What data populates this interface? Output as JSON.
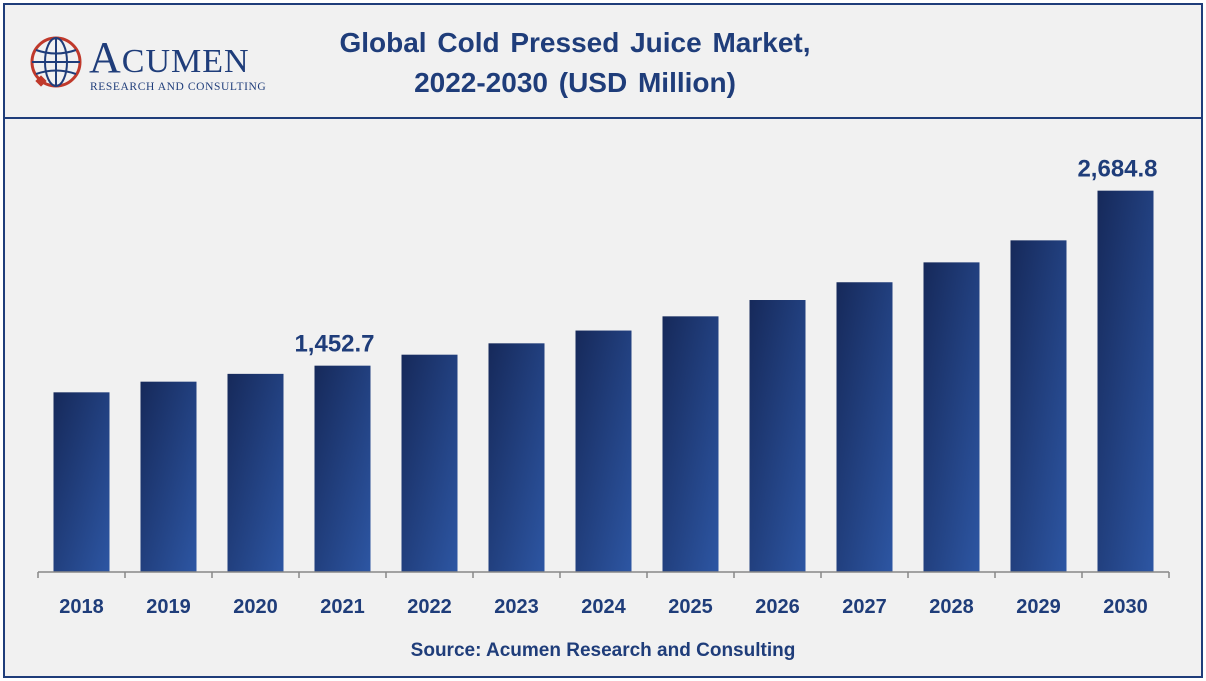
{
  "header": {
    "logo_text": "ACUMEN",
    "logo_sub": "RESEARCH AND CONSULTING",
    "title_line1": "Global Cold Pressed Juice Market,",
    "title_line2": "2022-2030 (USD Million)"
  },
  "source": "Source: Acumen Research and Consulting",
  "colors": {
    "bar_dark": "#16295a",
    "bar_light": "#2d56a3",
    "text": "#1f3d7a",
    "axis": "#888888"
  },
  "chart_data": {
    "type": "bar",
    "title": "Global Cold Pressed Juice Market, 2022-2030 (USD Million)",
    "xlabel": "",
    "ylabel": "",
    "categories": [
      "2018",
      "2019",
      "2020",
      "2021",
      "2022",
      "2023",
      "2024",
      "2025",
      "2026",
      "2027",
      "2028",
      "2029",
      "2030"
    ],
    "values": [
      1265,
      1340,
      1395,
      1452.7,
      1530,
      1610,
      1700,
      1800,
      1915,
      2040,
      2180,
      2335,
      2684.8
    ],
    "data_labels": [
      {
        "index": 3,
        "text": "1,452.7"
      },
      {
        "index": 12,
        "text": "2,684.8"
      }
    ],
    "ylim": [
      0,
      2950
    ],
    "grid": false,
    "legend": "none"
  }
}
